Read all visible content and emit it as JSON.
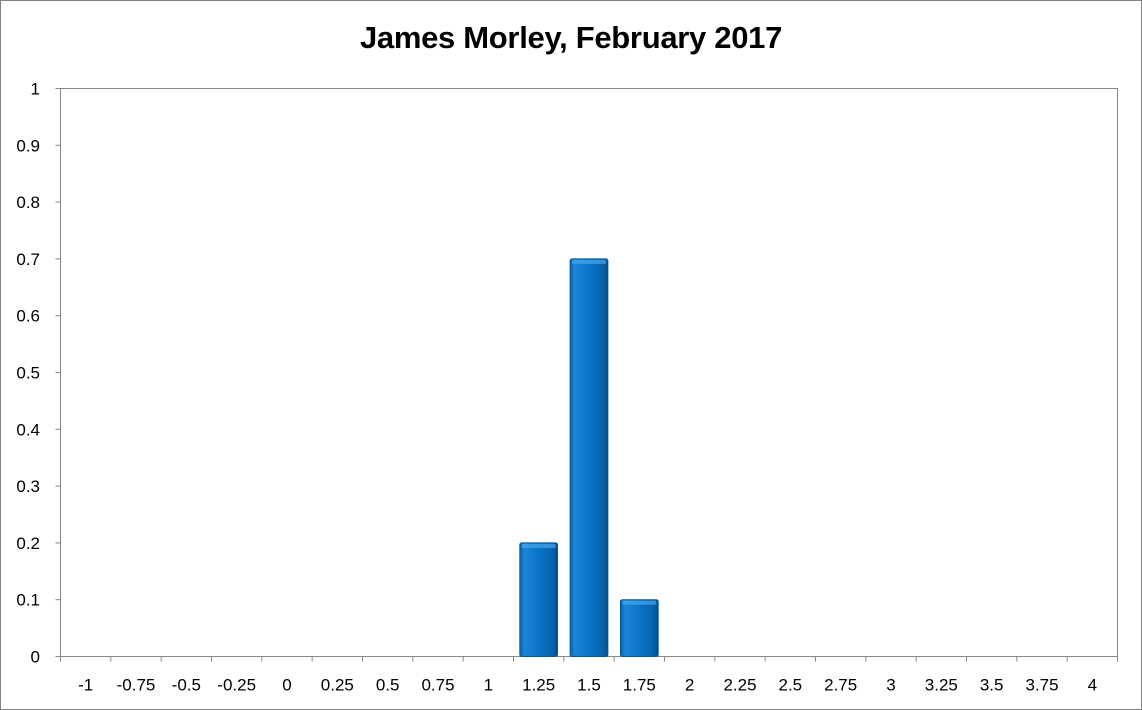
{
  "chart_data": {
    "type": "bar",
    "title": "James Morley, February 2017",
    "xlabel": "",
    "ylabel": "",
    "categories": [
      "-1",
      "-0.75",
      "-0.5",
      "-0.25",
      "0",
      "0.25",
      "0.5",
      "0.75",
      "1",
      "1.25",
      "1.5",
      "1.75",
      "2",
      "2.25",
      "2.5",
      "2.75",
      "3",
      "3.25",
      "3.5",
      "3.75",
      "4"
    ],
    "values": [
      0,
      0,
      0,
      0,
      0,
      0,
      0,
      0,
      0,
      0.2,
      0.7,
      0.1,
      0,
      0,
      0,
      0,
      0,
      0,
      0,
      0,
      0
    ],
    "yticks": [
      "0",
      "0.1",
      "0.2",
      "0.3",
      "0.4",
      "0.5",
      "0.6",
      "0.7",
      "0.8",
      "0.9",
      "1"
    ],
    "ylim": [
      0,
      1
    ],
    "grid": false,
    "legend": "none",
    "bar_color": "#0070c0"
  }
}
